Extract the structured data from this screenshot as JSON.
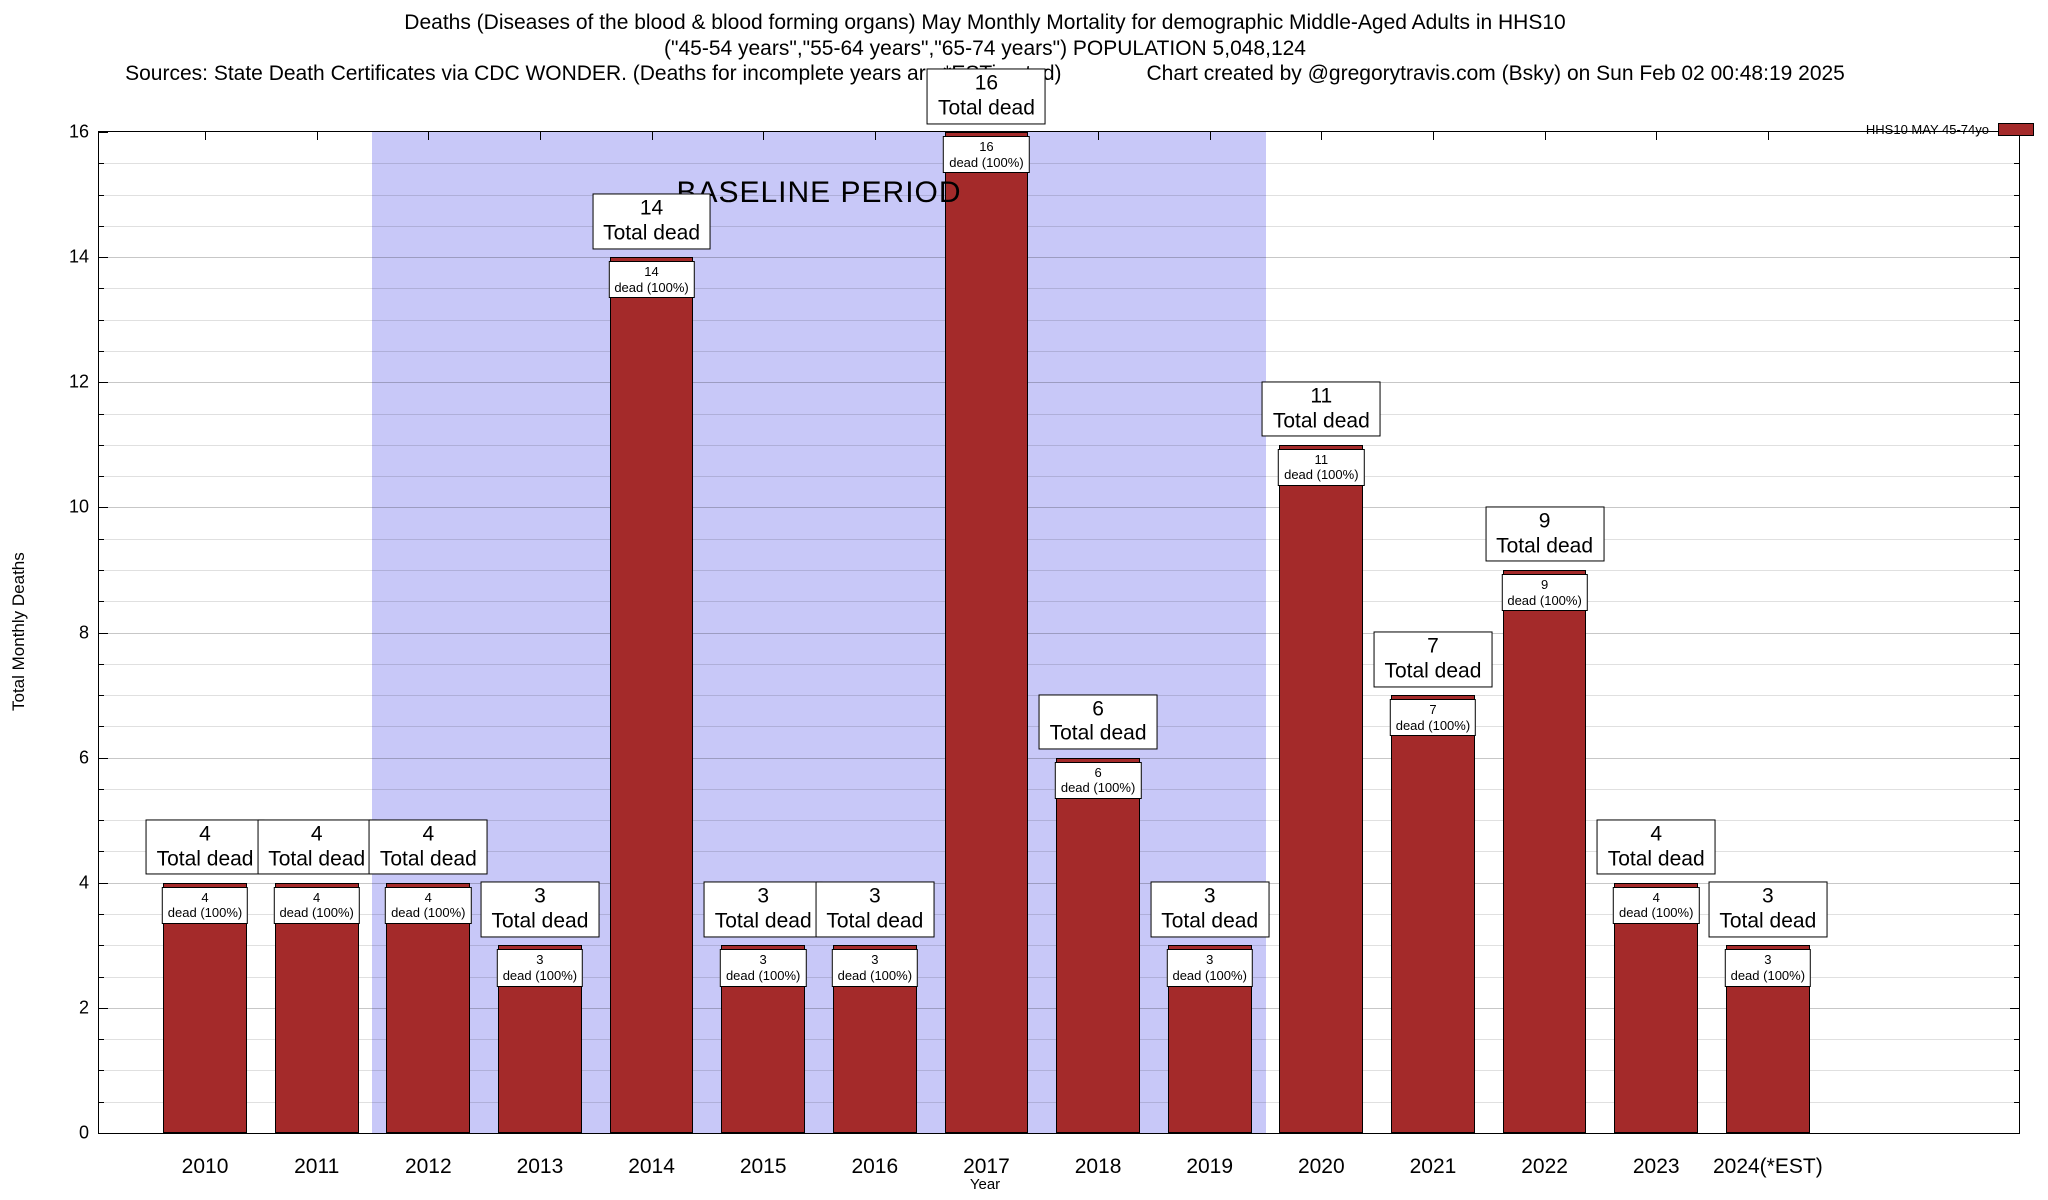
{
  "header": {
    "title_line1": "Deaths (Diseases of the blood & blood forming organs) May Monthly Mortality for demographic Middle-Aged Adults in HHS10",
    "title_line2": "(\"45-54 years\",\"55-64 years\",\"65-74 years\") POPULATION 5,048,124",
    "sources": "Sources: State Death Certificates via CDC WONDER. (Deaths for incomplete years are *ESTimated)",
    "credit": "Chart created by @gregorytravis.com (Bsky) on Sun Feb 02 00:48:19 2025"
  },
  "chart_data": {
    "type": "bar",
    "title": "Deaths (Diseases of the blood & blood forming organs) May Monthly Mortality for demographic Middle-Aged Adults in HHS10",
    "categories": [
      "2010",
      "2011",
      "2012",
      "2013",
      "2014",
      "2015",
      "2016",
      "2017",
      "2018",
      "2019",
      "2020",
      "2021",
      "2022",
      "2023",
      "2024(*EST)"
    ],
    "values": [
      4,
      4,
      4,
      3,
      14,
      3,
      3,
      16,
      6,
      3,
      11,
      7,
      9,
      4,
      3
    ],
    "bar_total_label_suffix": "Total dead",
    "bar_inner_label_suffix": "dead (100%)",
    "xlabel": "Year",
    "ylabel": "Total Monthly Deaths",
    "ylim": [
      0,
      16
    ],
    "ytick_step": 2,
    "minor_grid_step": 0.5,
    "xlim": [
      2009.05,
      2026.25
    ],
    "bar_width_years": 0.75,
    "bar_color": "#a42a2a",
    "grid": true,
    "baseline_region": {
      "label": "BASELINE PERIOD",
      "from": 2011.5,
      "to": 2019.5,
      "color": "#c8c8f8"
    },
    "legend": {
      "label": "HHS10 MAY 45-74yo",
      "color": "#a42a2a",
      "position": "top-right-outside"
    }
  }
}
